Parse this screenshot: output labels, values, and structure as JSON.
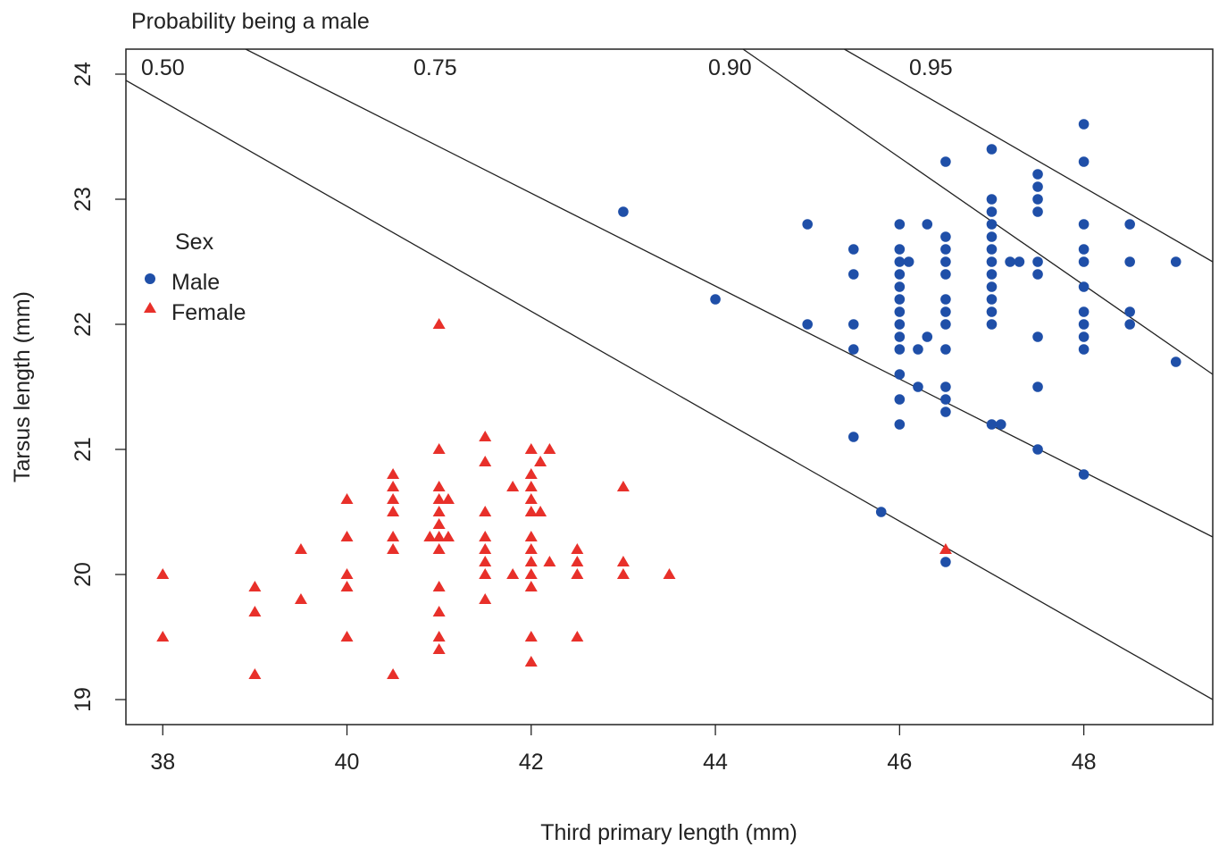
{
  "chart_data": {
    "type": "scatter",
    "title": "Probability being a male",
    "xlabel": "Third primary length (mm)",
    "ylabel": "Tarsus length (mm)",
    "xlim": [
      37.6,
      49.4
    ],
    "ylim": [
      18.8,
      24.2
    ],
    "x_ticks": [
      "38",
      "40",
      "42",
      "44",
      "46",
      "48"
    ],
    "y_ticks": [
      "19",
      "20",
      "21",
      "22",
      "23",
      "24"
    ],
    "grid": false,
    "legend": {
      "title": "Sex",
      "position": "left",
      "entries": [
        {
          "label": "Male",
          "marker": "circle",
          "color": "#1f4fa8"
        },
        {
          "label": "Female",
          "marker": "triangle",
          "color": "#e8302a"
        }
      ]
    },
    "contours": [
      {
        "label": "0.50",
        "x1": 37.6,
        "y1": 23.95,
        "x2": 49.4,
        "y2": 19.0
      },
      {
        "label": "0.75",
        "x1": 38.9,
        "y1": 24.2,
        "x2": 49.4,
        "y2": 20.3
      },
      {
        "label": "0.90",
        "x1": 44.3,
        "y1": 24.2,
        "x2": 49.4,
        "y2": 21.6
      },
      {
        "label": "0.95",
        "x1": 45.4,
        "y1": 24.2,
        "x2": 49.4,
        "y2": 22.5
      }
    ],
    "series": [
      {
        "name": "Male",
        "marker": "circle",
        "color": "#1f4fa8",
        "points": [
          [
            43,
            22.9
          ],
          [
            44,
            22.2
          ],
          [
            45,
            22.8
          ],
          [
            45,
            22.0
          ],
          [
            45.5,
            22.6
          ],
          [
            45.5,
            22.4
          ],
          [
            45.5,
            22.0
          ],
          [
            45.5,
            21.8
          ],
          [
            45.5,
            21.1
          ],
          [
            45.8,
            20.5
          ],
          [
            46,
            22.8
          ],
          [
            46,
            22.6
          ],
          [
            46,
            22.5
          ],
          [
            46,
            22.4
          ],
          [
            46,
            22.3
          ],
          [
            46,
            22.2
          ],
          [
            46,
            22.1
          ],
          [
            46,
            22.0
          ],
          [
            46,
            21.9
          ],
          [
            46,
            21.8
          ],
          [
            46,
            21.6
          ],
          [
            46,
            21.4
          ],
          [
            46,
            21.2
          ],
          [
            46.1,
            22.5
          ],
          [
            46.2,
            21.8
          ],
          [
            46.2,
            21.5
          ],
          [
            46.3,
            22.8
          ],
          [
            46.3,
            21.9
          ],
          [
            46.5,
            23.3
          ],
          [
            46.5,
            22.7
          ],
          [
            46.5,
            22.6
          ],
          [
            46.5,
            22.5
          ],
          [
            46.5,
            22.4
          ],
          [
            46.5,
            22.2
          ],
          [
            46.5,
            22.1
          ],
          [
            46.5,
            22.0
          ],
          [
            46.5,
            21.8
          ],
          [
            46.5,
            21.5
          ],
          [
            46.5,
            21.4
          ],
          [
            46.5,
            21.3
          ],
          [
            46.5,
            20.1
          ],
          [
            47,
            23.4
          ],
          [
            47,
            23.0
          ],
          [
            47,
            22.9
          ],
          [
            47,
            22.8
          ],
          [
            47,
            22.7
          ],
          [
            47,
            22.6
          ],
          [
            47,
            22.5
          ],
          [
            47,
            22.4
          ],
          [
            47,
            22.3
          ],
          [
            47,
            22.2
          ],
          [
            47,
            22.1
          ],
          [
            47,
            22.0
          ],
          [
            47,
            21.2
          ],
          [
            47.1,
            21.2
          ],
          [
            47.2,
            22.5
          ],
          [
            47.3,
            22.5
          ],
          [
            47.5,
            23.2
          ],
          [
            47.5,
            23.1
          ],
          [
            47.5,
            23.0
          ],
          [
            47.5,
            22.9
          ],
          [
            47.5,
            22.5
          ],
          [
            47.5,
            22.4
          ],
          [
            47.5,
            21.9
          ],
          [
            47.5,
            21.5
          ],
          [
            47.5,
            21.0
          ],
          [
            48,
            23.6
          ],
          [
            48,
            23.3
          ],
          [
            48,
            22.8
          ],
          [
            48,
            22.6
          ],
          [
            48,
            22.5
          ],
          [
            48,
            22.3
          ],
          [
            48,
            22.1
          ],
          [
            48,
            22.0
          ],
          [
            48,
            21.9
          ],
          [
            48,
            21.8
          ],
          [
            48,
            20.8
          ],
          [
            48.5,
            22.8
          ],
          [
            48.5,
            22.5
          ],
          [
            48.5,
            22.1
          ],
          [
            48.5,
            22.0
          ],
          [
            49,
            22.5
          ],
          [
            49,
            21.7
          ]
        ]
      },
      {
        "name": "Female",
        "marker": "triangle",
        "color": "#e8302a",
        "points": [
          [
            38,
            20.0
          ],
          [
            38,
            19.5
          ],
          [
            39,
            19.9
          ],
          [
            39,
            19.7
          ],
          [
            39,
            19.2
          ],
          [
            39.5,
            20.2
          ],
          [
            39.5,
            19.8
          ],
          [
            40,
            20.6
          ],
          [
            40,
            20.3
          ],
          [
            40,
            20.0
          ],
          [
            40,
            19.9
          ],
          [
            40,
            19.5
          ],
          [
            40.5,
            20.8
          ],
          [
            40.5,
            20.7
          ],
          [
            40.5,
            20.6
          ],
          [
            40.5,
            20.5
          ],
          [
            40.5,
            20.3
          ],
          [
            40.5,
            20.2
          ],
          [
            40.5,
            19.2
          ],
          [
            40.9,
            20.3
          ],
          [
            41,
            22.0
          ],
          [
            41,
            21.0
          ],
          [
            41,
            20.7
          ],
          [
            41,
            20.6
          ],
          [
            41,
            20.5
          ],
          [
            41,
            20.4
          ],
          [
            41,
            20.3
          ],
          [
            41,
            20.2
          ],
          [
            41,
            19.9
          ],
          [
            41,
            19.7
          ],
          [
            41,
            19.5
          ],
          [
            41,
            19.4
          ],
          [
            41.1,
            20.6
          ],
          [
            41.1,
            20.3
          ],
          [
            41.5,
            21.1
          ],
          [
            41.5,
            20.9
          ],
          [
            41.5,
            20.5
          ],
          [
            41.5,
            20.3
          ],
          [
            41.5,
            20.2
          ],
          [
            41.5,
            20.1
          ],
          [
            41.5,
            20.0
          ],
          [
            41.5,
            19.8
          ],
          [
            41.8,
            20.7
          ],
          [
            41.8,
            20.0
          ],
          [
            42,
            21.0
          ],
          [
            42,
            20.8
          ],
          [
            42,
            20.7
          ],
          [
            42,
            20.6
          ],
          [
            42,
            20.5
          ],
          [
            42,
            20.3
          ],
          [
            42,
            20.2
          ],
          [
            42,
            20.1
          ],
          [
            42,
            20.0
          ],
          [
            42,
            19.9
          ],
          [
            42,
            19.5
          ],
          [
            42,
            19.3
          ],
          [
            42.1,
            20.9
          ],
          [
            42.1,
            20.5
          ],
          [
            42.2,
            21.0
          ],
          [
            42.2,
            20.1
          ],
          [
            42.5,
            20.2
          ],
          [
            42.5,
            20.1
          ],
          [
            42.5,
            20.0
          ],
          [
            42.5,
            19.5
          ],
          [
            43,
            20.7
          ],
          [
            43,
            20.1
          ],
          [
            43,
            20.0
          ],
          [
            43.5,
            20.0
          ],
          [
            46.5,
            20.2
          ]
        ]
      }
    ]
  }
}
